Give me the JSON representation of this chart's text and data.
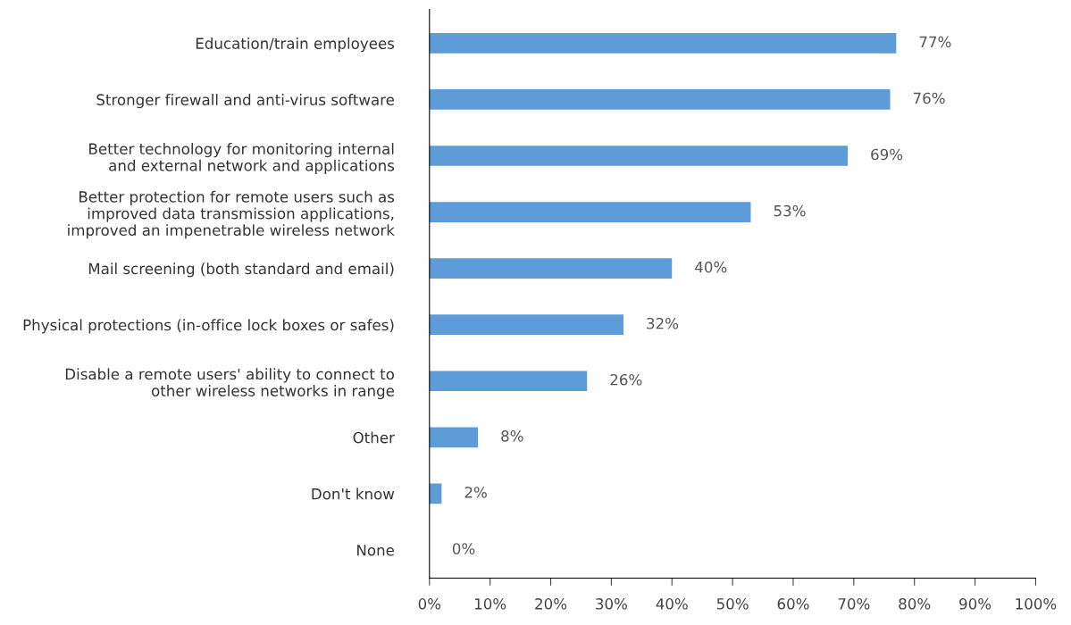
{
  "chart_data": {
    "type": "bar",
    "orientation": "horizontal",
    "categories": [
      "Education/train employees",
      "Stronger firewall and anti-virus software",
      "Better technology for monitoring internal\nand external network and applications",
      "Better protection for remote users such as\nimproved data transmission applications,\nimproved an impenetrable wireless network",
      "Mail screening (both standard and email)",
      "Physical protections (in-office lock boxes or safes)",
      "Disable a remote users' ability to connect to\nother wireless networks in range",
      "Other",
      "Don't know",
      "None"
    ],
    "values": [
      77,
      76,
      69,
      53,
      40,
      32,
      26,
      8,
      2,
      0
    ],
    "value_labels": [
      "77%",
      "76%",
      "69%",
      "53%",
      "40%",
      "32%",
      "26%",
      "8%",
      "2%",
      "0%"
    ],
    "color": "#5d9bd9",
    "xlim": [
      0,
      100
    ],
    "xticks": [
      {
        "value": 0,
        "label": "0%"
      },
      {
        "value": 10,
        "label": "10%"
      },
      {
        "value": 20,
        "label": "20%"
      },
      {
        "value": 30,
        "label": "30%"
      },
      {
        "value": 40,
        "label": "40%"
      },
      {
        "value": 50,
        "label": "50%"
      },
      {
        "value": 60,
        "label": "60%"
      },
      {
        "value": 70,
        "label": "70%"
      },
      {
        "value": 80,
        "label": "80%"
      },
      {
        "value": 90,
        "label": "90%"
      },
      {
        "value": 100,
        "label": "100%"
      }
    ],
    "grid": false
  }
}
